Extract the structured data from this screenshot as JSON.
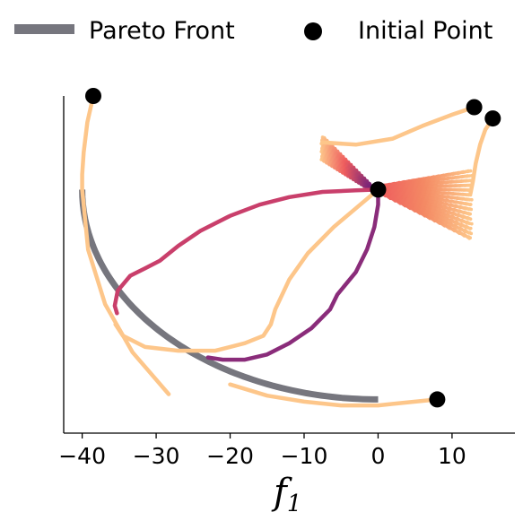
{
  "chart_data": {
    "type": "line",
    "title": "",
    "xlabel_base": "f",
    "xlabel_sub": "1",
    "ylabel": "",
    "xlim": [
      -42.5,
      18.5
    ],
    "ylim": [
      -32.5,
      12.5
    ],
    "x_ticks": [
      -40,
      -30,
      -20,
      -10,
      0,
      10
    ],
    "x_tick_labels": [
      "−40",
      "−30",
      "−20",
      "−10",
      "0",
      "10"
    ],
    "legend": [
      {
        "label": "Pareto Front",
        "kind": "line",
        "color": "#76767e"
      },
      {
        "label": "Initial Point",
        "kind": "marker",
        "color": "#000000"
      }
    ],
    "pareto_front": {
      "center": [
        0,
        0
      ],
      "radius": 40,
      "color": "#76767e"
    },
    "initial_points": [
      {
        "x": -38.5,
        "y": 12.5
      },
      {
        "x": 13,
        "y": 11
      },
      {
        "x": 15.5,
        "y": 9.5
      },
      {
        "x": 0,
        "y": 0
      },
      {
        "x": 8,
        "y": -28
      }
    ],
    "trajectories": [
      {
        "color": "#fdc68a",
        "points": [
          [
            -38.5,
            12.5
          ],
          [
            -39.3,
            9
          ],
          [
            -39.8,
            5
          ],
          [
            -40,
            2
          ],
          [
            -40,
            0
          ],
          [
            -39.2,
            -8
          ],
          [
            -36.9,
            -15.3
          ],
          [
            -33.2,
            -21.7
          ],
          [
            -28.3,
            -27.3
          ]
        ]
      },
      {
        "color": "#fdc68a",
        "points": [
          [
            8,
            -28
          ],
          [
            5,
            -28.3
          ],
          [
            2,
            -28.6
          ],
          [
            0,
            -28.8
          ],
          [
            -5,
            -28.8
          ],
          [
            -10,
            -28.3
          ],
          [
            -15,
            -27.5
          ],
          [
            -20,
            -26
          ]
        ]
      },
      {
        "color": "#fdc68a",
        "points": [
          [
            13,
            11
          ],
          [
            10,
            10
          ],
          [
            6,
            8.5
          ],
          [
            2,
            6.8
          ],
          [
            -3,
            6
          ],
          [
            -7.5,
            6.3
          ]
        ]
      },
      {
        "color": "#fdc68a",
        "points": [
          [
            15.5,
            9.5
          ],
          [
            14.5,
            8
          ],
          [
            13.8,
            6
          ],
          [
            13.2,
            3.5
          ],
          [
            12.8,
            1
          ],
          [
            12.5,
            -0.5
          ]
        ]
      },
      {
        "color": "#fdc68a",
        "points": [
          [
            0,
            0
          ],
          [
            -3,
            -2.5
          ],
          [
            -6,
            -5
          ],
          [
            -9.5,
            -8.5
          ],
          [
            -12,
            -12
          ],
          [
            -13.9,
            -16
          ],
          [
            -14.5,
            -18
          ],
          [
            -15.5,
            -19.5
          ],
          [
            -18,
            -20.5
          ],
          [
            -22,
            -21.5
          ],
          [
            -27,
            -21.5
          ],
          [
            -31.5,
            -21
          ],
          [
            -34.5,
            -19.5
          ],
          [
            -35.5,
            -18
          ]
        ]
      },
      {
        "color": "#c93f6b",
        "points": [
          [
            0,
            0
          ],
          [
            -3,
            -0.1
          ],
          [
            -7.5,
            -0.3
          ],
          [
            -12,
            -1
          ],
          [
            -16,
            -2
          ],
          [
            -20,
            -3.5
          ],
          [
            -24,
            -5.5
          ],
          [
            -27,
            -7.5
          ],
          [
            -29.5,
            -9.5
          ],
          [
            -31.5,
            -10.5
          ],
          [
            -33.5,
            -11.5
          ],
          [
            -35.2,
            -13.5
          ],
          [
            -35.6,
            -15.5
          ],
          [
            -35.3,
            -16.5
          ]
        ]
      },
      {
        "color": "#8a2c7a",
        "points": [
          [
            0,
            0
          ],
          [
            0,
            -2
          ],
          [
            -0.5,
            -5
          ],
          [
            -1.5,
            -8
          ],
          [
            -3,
            -11
          ],
          [
            -5.5,
            -14
          ],
          [
            -6.5,
            -16
          ],
          [
            -9,
            -18.5
          ],
          [
            -12,
            -20.5
          ],
          [
            -15,
            -22
          ],
          [
            -18,
            -22.7
          ],
          [
            -21,
            -22.7
          ],
          [
            -23,
            -22.4
          ]
        ]
      }
    ],
    "fans": [
      {
        "name": "upper-left",
        "tip": [
          0,
          0
        ],
        "x_edges": [
          -7.5,
          -1
        ],
        "y_top": [
          7,
          0.5
        ],
        "y_bot": [
          4,
          0
        ],
        "colors": [
          "#fdc68a",
          "#ee5d5e",
          "#7a2579"
        ]
      },
      {
        "name": "right",
        "tip": [
          0,
          0
        ],
        "x_edges": [
          0.5,
          12.5
        ],
        "y_top": [
          0.5,
          2.5
        ],
        "y_bot": [
          -0.5,
          -6.5
        ],
        "colors": [
          "#ee5d5e",
          "#f48a64",
          "#fdc68a"
        ]
      }
    ]
  }
}
